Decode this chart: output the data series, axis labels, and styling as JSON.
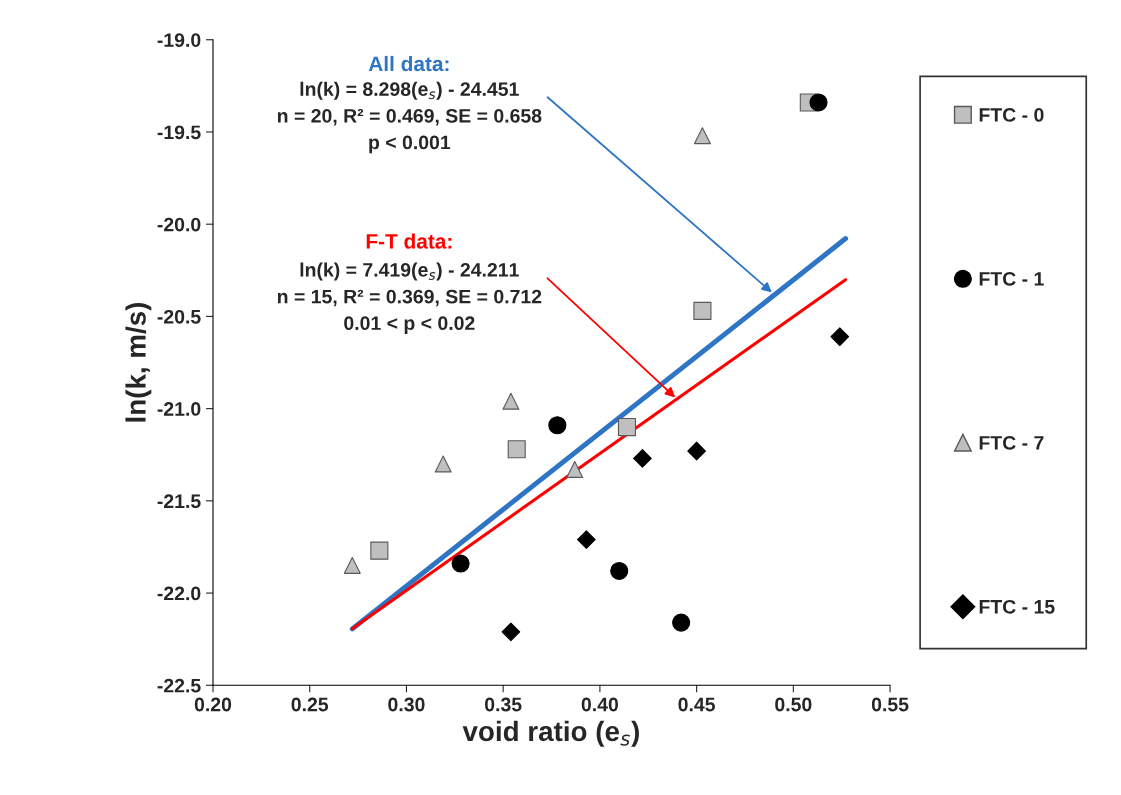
{
  "chart_data": {
    "type": "scatter",
    "xlabel": "void ratio (e$_{s}$)",
    "ylabel": "ln(k, m/s)",
    "series": [
      {
        "name": "FTC - 0",
        "marker": "square",
        "color": "#bfbfbf",
        "x": [
          0.508,
          0.453,
          0.414,
          0.357,
          0.286
        ],
        "values": [
          -19.34,
          -20.47,
          -21.1,
          -21.22,
          -21.77
        ]
      },
      {
        "name": "FTC - 1",
        "marker": "circle",
        "color": "#000000",
        "x": [
          0.513,
          0.378,
          0.328,
          0.41,
          0.442
        ],
        "values": [
          -19.34,
          -21.09,
          -21.84,
          -21.88,
          -22.16
        ]
      },
      {
        "name": "FTC - 7",
        "marker": "triangle",
        "color": "#bfbfbf",
        "x": [
          0.453,
          0.354,
          0.319,
          0.387,
          0.272
        ],
        "values": [
          -19.52,
          -20.96,
          -21.3,
          -21.33,
          -21.85
        ]
      },
      {
        "name": "FTC - 15",
        "marker": "diamond",
        "color": "#000000",
        "x": [
          0.524,
          0.422,
          0.45,
          0.393,
          0.354
        ],
        "values": [
          -20.61,
          -21.27,
          -21.23,
          -21.71,
          -22.21
        ]
      },
      {
        "type": "line",
        "color": "#2e75c6",
        "x": [
          0.272,
          0.527
        ],
        "values": [
          -22.194,
          -20.078
        ]
      },
      {
        "type": "line",
        "color": "#ff0000",
        "x": [
          0.272,
          0.527
        ],
        "values": [
          -22.193,
          -20.301
        ]
      }
    ],
    "annotations": [
      "All data:",
      {
        "text": "ln(k) = 8.298(e$_{s}$) - 24.451\nn = 20, R² = 0.469, SE = 0.658\np < 0.001",
        "x": 0.49,
        "y": -20.38
      },
      "F-T data:",
      {
        "text": "ln(k) = 7.419(e$_{s}$) - 24.211\nn = 15, R² = 0.369, SE = 0.712\n0.01 < p < 0.02",
        "x": 0.44,
        "y": -20.95
      }
    ],
    "xlim": [
      0.2,
      0.55
    ],
    "xticks": [
      {
        "value": 0.2,
        "label": "0.20"
      },
      {
        "value": 0.25,
        "label": "0.25"
      },
      {
        "value": 0.3,
        "label": "0.30"
      },
      {
        "value": 0.35,
        "label": "0.35"
      },
      {
        "value": 0.4,
        "label": "0.40"
      },
      {
        "value": 0.45,
        "label": "0.45"
      },
      {
        "value": 0.5,
        "label": "0.50"
      },
      {
        "value": 0.55,
        "label": "0.55"
      }
    ],
    "ylim": [
      -22.5,
      -19.0
    ],
    "yticks": [
      {
        "value": -22.5,
        "label": "-22.5"
      },
      {
        "value": -22.0,
        "label": "-22.0"
      },
      {
        "value": -21.5,
        "label": "-21.5"
      },
      {
        "value": -21.0,
        "label": "-21.0"
      },
      {
        "value": -20.5,
        "label": "-20.5"
      },
      {
        "value": -20.0,
        "label": "-20.0"
      },
      {
        "value": -19.5,
        "label": "-19.5"
      },
      {
        "value": -19.0,
        "label": "-19.0"
      }
    ],
    "grid": false,
    "legend": "right"
  }
}
